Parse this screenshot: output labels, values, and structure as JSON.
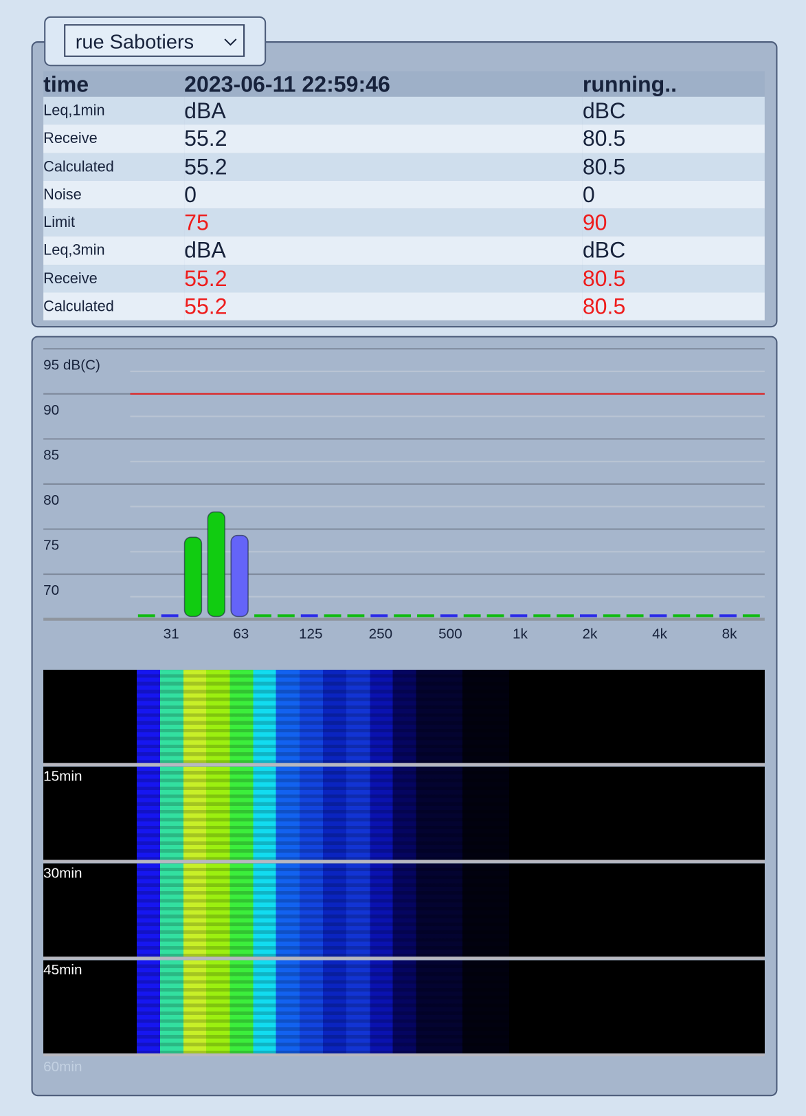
{
  "selector": {
    "label": "rue Sabotiers"
  },
  "table": {
    "header": [
      "time",
      "2023-06-11 22:59:46",
      "running.."
    ],
    "rows": [
      [
        "Leq,1min",
        "dBA",
        "dBC"
      ],
      [
        "Receive",
        55.2,
        80.5
      ],
      [
        "Calculated",
        55.2,
        80.5
      ],
      [
        "Noise",
        0,
        0
      ],
      [
        "Limit",
        75,
        90
      ],
      [
        "Leq,3min",
        "dBA",
        "dBC"
      ],
      [
        "Receive",
        55.2,
        80.5
      ],
      [
        "Calculated",
        55.2,
        80.5
      ]
    ]
  },
  "chart_data": {
    "type": "bar",
    "categories": [
      null,
      "31",
      null,
      null,
      "63",
      null,
      null,
      "125",
      null,
      null,
      "250",
      null,
      null,
      "500",
      null,
      null,
      "1k",
      null,
      null,
      "2k",
      null,
      null,
      "4k",
      null,
      null,
      "8k",
      null
    ],
    "values": [
      null,
      null,
      74.1,
      76.9,
      74.3,
      null,
      null,
      null,
      null,
      null,
      null,
      null,
      null,
      null,
      null,
      null,
      null,
      null,
      null,
      null,
      null,
      null,
      null,
      null,
      null,
      null,
      null
    ],
    "colors": [
      "#11bb11",
      "#2a2ae8",
      "#11cc11",
      "#11cc11",
      "#6464f8",
      "#11bb11",
      "#11bb11",
      "#2a2ae8",
      "#11bb11",
      "#11bb11",
      "#2a2ae8",
      "#11bb11",
      "#11bb11",
      "#2a2ae8",
      "#11bb11",
      "#11bb11",
      "#2a2ae8",
      "#11bb11",
      "#11bb11",
      "#2a2ae8",
      "#11bb11",
      "#11bb11",
      "#2a2ae8",
      "#11bb11",
      "#11bb11",
      "#2a2ae8",
      "#11bb11"
    ],
    "ylim": [
      65,
      95
    ],
    "yticks": [
      {
        "value": 95,
        "label": "95 dB(C)"
      },
      90,
      85,
      80,
      75,
      70
    ],
    "minor_yticks": [
      92.5,
      87.5,
      82.5,
      77.5,
      72.5,
      67.5
    ],
    "grid": true,
    "limit": 90,
    "limit_color": "#e02424"
  },
  "spectrogram": {
    "labels": [
      "15min",
      "30min",
      "45min",
      "60min"
    ]
  }
}
